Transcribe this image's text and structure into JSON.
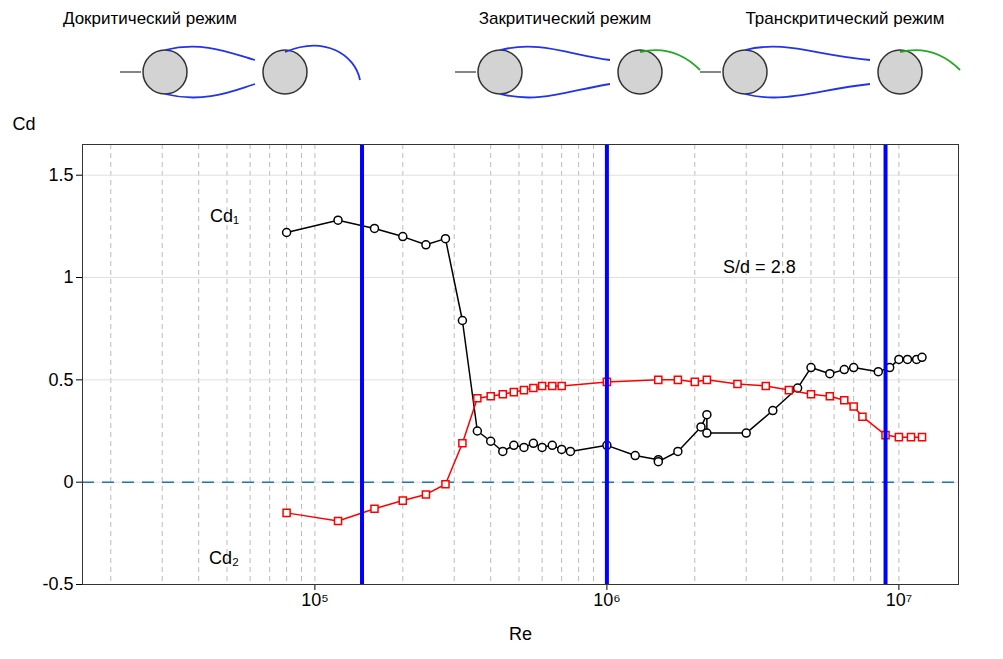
{
  "chart_data": {
    "type": "line",
    "log": "x",
    "grid": true,
    "x_label": "Re",
    "y_label": "Cd",
    "regimes": [
      "Докритический режим",
      "Закритический режим",
      "Транскритический режим"
    ],
    "xlim": [
      16000,
      16000000
    ],
    "xticks": [
      {
        "value": 100000,
        "label": "10⁵"
      },
      {
        "value": 1000000,
        "label": "10⁶"
      },
      {
        "value": 10000000,
        "label": "10⁷"
      }
    ],
    "ylim": [
      -0.5,
      1.65
    ],
    "yticks": [
      -0.5,
      0,
      0.5,
      1,
      1.5
    ],
    "vlines": [
      145000,
      1000000,
      9000000
    ],
    "hlines": [
      0
    ],
    "annotations": [
      {
        "text": "S/d = 2.8",
        "x": 2500000,
        "y": 1.05
      }
    ],
    "series": [
      {
        "name": "Cd₁",
        "color": "#000000",
        "marker": "circle",
        "label_at": [
          55000,
          1.3
        ],
        "x": [
          80000,
          120000,
          160000,
          200000,
          240000,
          280000,
          320000,
          360000,
          400000,
          440000,
          480000,
          520000,
          560000,
          600000,
          650000,
          700000,
          750000,
          1000000,
          1250000,
          1500000,
          1500000,
          1750000,
          2100000,
          2200000,
          2200000,
          3000000,
          3700000,
          4500000,
          5000000,
          5800000,
          6500000,
          7000000,
          8500000,
          9300000,
          10000000,
          10700000,
          11500000,
          12000000
        ],
        "values": [
          1.22,
          1.28,
          1.24,
          1.2,
          1.16,
          1.19,
          0.79,
          0.25,
          0.2,
          0.15,
          0.18,
          0.17,
          0.19,
          0.17,
          0.18,
          0.16,
          0.15,
          0.18,
          0.13,
          0.11,
          0.1,
          0.15,
          0.27,
          0.33,
          0.24,
          0.24,
          0.35,
          0.46,
          0.56,
          0.53,
          0.55,
          0.56,
          0.54,
          0.56,
          0.6,
          0.6,
          0.6,
          0.61
        ]
      },
      {
        "name": "Cd₂",
        "color": "#ff0000",
        "marker": "square",
        "label_at": [
          55000,
          -0.37
        ],
        "x": [
          80000,
          120000,
          160000,
          200000,
          240000,
          280000,
          320000,
          360000,
          400000,
          440000,
          480000,
          520000,
          560000,
          600000,
          650000,
          700000,
          1000000,
          1500000,
          1750000,
          2000000,
          2200000,
          2800000,
          3500000,
          4200000,
          5000000,
          5800000,
          6500000,
          7000000,
          7500000,
          9000000,
          10000000,
          11000000,
          12000000
        ],
        "values": [
          -0.15,
          -0.19,
          -0.13,
          -0.09,
          -0.06,
          -0.01,
          0.19,
          0.41,
          0.42,
          0.43,
          0.44,
          0.45,
          0.46,
          0.47,
          0.47,
          0.47,
          0.49,
          0.5,
          0.5,
          0.49,
          0.5,
          0.48,
          0.47,
          0.45,
          0.43,
          0.42,
          0.4,
          0.37,
          0.32,
          0.23,
          0.22,
          0.22,
          0.22
        ]
      }
    ]
  }
}
